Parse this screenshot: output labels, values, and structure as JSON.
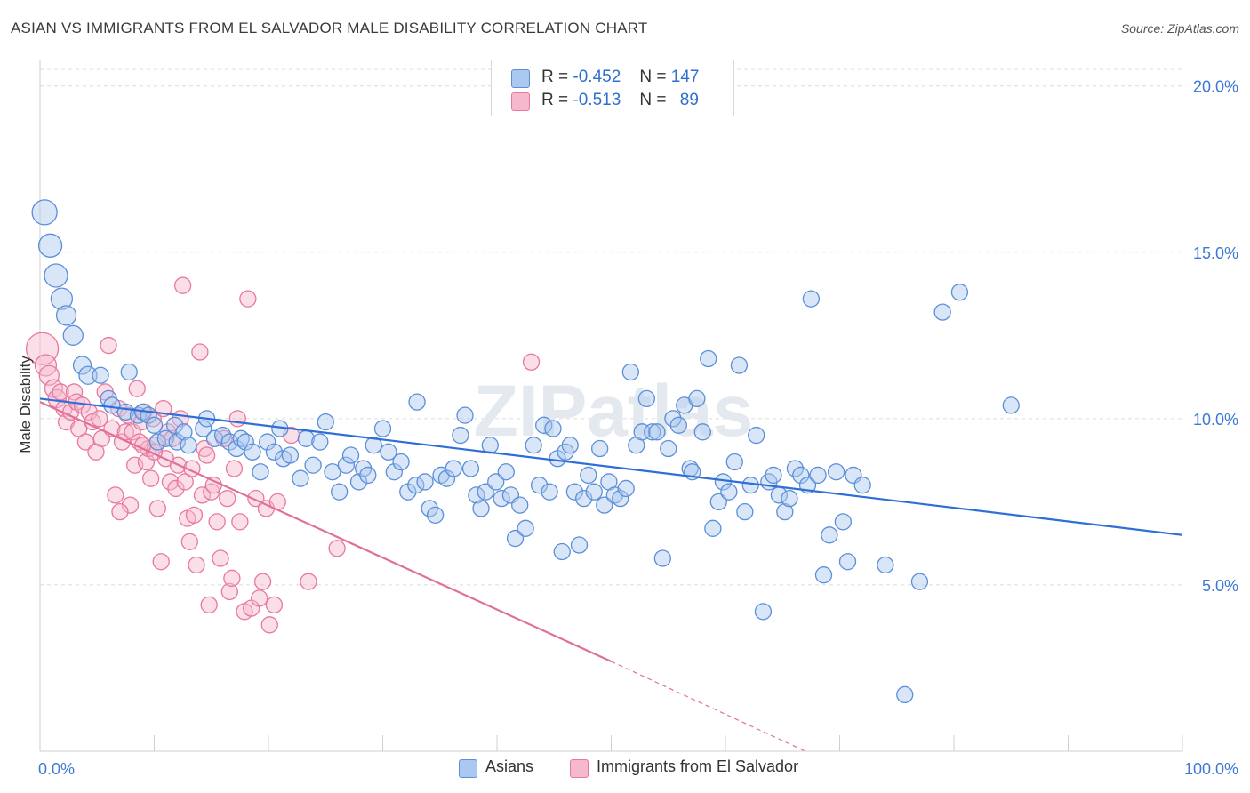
{
  "title": "ASIAN VS IMMIGRANTS FROM EL SALVADOR MALE DISABILITY CORRELATION CHART",
  "source": "Source: ZipAtlas.com",
  "watermark": "ZIPatlas",
  "legend_top": {
    "r_label": "R =",
    "n_label": "N =",
    "rows": [
      {
        "r": "-0.452",
        "n": "147"
      },
      {
        "r": "-0.513",
        "n": "89"
      }
    ]
  },
  "colors": {
    "asian_fill": "#aac8f0",
    "asian_stroke": "#5b8fd8",
    "asian_line": "#2d6fd6",
    "salv_fill": "#f6b8cc",
    "salv_stroke": "#e8789e",
    "salv_line": "#e0709a",
    "tick_label": "#3d78d4",
    "grid": "#dcdcdc"
  },
  "chart_data": {
    "type": "scatter",
    "title": "ASIAN VS IMMIGRANTS FROM EL SALVADOR MALE DISABILITY CORRELATION CHART",
    "xlabel": "",
    "ylabel": "Male Disability",
    "xlim": [
      0,
      100
    ],
    "ylim": [
      0,
      20.5
    ],
    "x_tick_labels": [
      "0.0%",
      "100.0%"
    ],
    "y_ticks": [
      5,
      10,
      15,
      20
    ],
    "y_tick_labels": [
      "5.0%",
      "10.0%",
      "15.0%",
      "20.0%"
    ],
    "grid": true,
    "legend_position": "bottom-center",
    "series": [
      {
        "name": "Asians",
        "r": -0.452,
        "n": 147,
        "trend": {
          "x0": 0,
          "y0": 10.6,
          "x1": 100,
          "y1": 6.5
        },
        "points": [
          [
            0.4,
            16.2,
            14
          ],
          [
            0.9,
            15.2,
            13
          ],
          [
            1.4,
            14.3,
            13
          ],
          [
            1.9,
            13.6,
            12
          ],
          [
            2.3,
            13.1,
            11
          ],
          [
            2.9,
            12.5,
            11
          ],
          [
            3.7,
            11.6,
            10
          ],
          [
            4.2,
            11.3,
            10
          ],
          [
            5.3,
            11.3,
            9
          ],
          [
            7.8,
            11.4,
            9
          ],
          [
            6.0,
            10.6,
            9
          ],
          [
            6.3,
            10.4,
            9
          ],
          [
            7.5,
            10.2,
            9
          ],
          [
            8.6,
            10.1,
            9
          ],
          [
            9.0,
            10.2,
            9
          ],
          [
            9.5,
            10.1,
            9
          ],
          [
            10.0,
            9.8,
            9
          ],
          [
            10.3,
            9.3,
            9
          ],
          [
            11.0,
            9.4,
            9
          ],
          [
            12.0,
            9.3,
            9
          ],
          [
            11.8,
            9.8,
            9
          ],
          [
            12.6,
            9.6,
            9
          ],
          [
            13.0,
            9.2,
            9
          ],
          [
            14.3,
            9.7,
            9
          ],
          [
            14.6,
            10.0,
            9
          ],
          [
            15.3,
            9.4,
            9
          ],
          [
            16.0,
            9.5,
            9
          ],
          [
            16.6,
            9.3,
            9
          ],
          [
            17.2,
            9.1,
            9
          ],
          [
            17.6,
            9.4,
            9
          ],
          [
            18.0,
            9.3,
            9
          ],
          [
            18.6,
            9.0,
            9
          ],
          [
            19.3,
            8.4,
            9
          ],
          [
            19.9,
            9.3,
            9
          ],
          [
            20.5,
            9.0,
            9
          ],
          [
            21.0,
            9.7,
            9
          ],
          [
            21.3,
            8.8,
            9
          ],
          [
            21.9,
            8.9,
            9
          ],
          [
            22.8,
            8.2,
            9
          ],
          [
            23.3,
            9.4,
            9
          ],
          [
            23.9,
            8.6,
            9
          ],
          [
            24.5,
            9.3,
            9
          ],
          [
            25.0,
            9.9,
            9
          ],
          [
            25.6,
            8.4,
            9
          ],
          [
            26.2,
            7.8,
            9
          ],
          [
            26.8,
            8.6,
            9
          ],
          [
            27.2,
            8.9,
            9
          ],
          [
            27.9,
            8.1,
            9
          ],
          [
            28.3,
            8.5,
            9
          ],
          [
            28.7,
            8.3,
            9
          ],
          [
            29.2,
            9.2,
            9
          ],
          [
            30.0,
            9.7,
            9
          ],
          [
            30.5,
            9.0,
            9
          ],
          [
            31.0,
            8.4,
            9
          ],
          [
            31.6,
            8.7,
            9
          ],
          [
            32.2,
            7.8,
            9
          ],
          [
            32.9,
            8.0,
            9
          ],
          [
            33.0,
            10.5,
            9
          ],
          [
            33.7,
            8.1,
            9
          ],
          [
            34.1,
            7.3,
            9
          ],
          [
            34.6,
            7.1,
            9
          ],
          [
            35.1,
            8.3,
            9
          ],
          [
            35.6,
            8.2,
            9
          ],
          [
            36.2,
            8.5,
            9
          ],
          [
            36.8,
            9.5,
            9
          ],
          [
            37.2,
            10.1,
            9
          ],
          [
            37.7,
            8.5,
            9
          ],
          [
            38.2,
            7.7,
            9
          ],
          [
            38.6,
            7.3,
            9
          ],
          [
            39.0,
            7.8,
            9
          ],
          [
            39.4,
            9.2,
            9
          ],
          [
            39.9,
            8.1,
            9
          ],
          [
            40.4,
            7.6,
            9
          ],
          [
            40.8,
            8.4,
            9
          ],
          [
            41.2,
            7.7,
            9
          ],
          [
            41.6,
            6.4,
            9
          ],
          [
            42.0,
            7.4,
            9
          ],
          [
            42.5,
            6.7,
            9
          ],
          [
            43.2,
            9.2,
            9
          ],
          [
            43.7,
            8.0,
            9
          ],
          [
            44.1,
            9.8,
            9
          ],
          [
            44.6,
            7.8,
            9
          ],
          [
            44.9,
            9.7,
            9
          ],
          [
            45.3,
            8.8,
            9
          ],
          [
            45.7,
            6.0,
            9
          ],
          [
            46.0,
            9.0,
            9
          ],
          [
            46.4,
            9.2,
            9
          ],
          [
            46.8,
            7.8,
            9
          ],
          [
            47.2,
            6.2,
            9
          ],
          [
            47.6,
            7.6,
            9
          ],
          [
            48.0,
            8.3,
            9
          ],
          [
            48.5,
            7.8,
            9
          ],
          [
            49.0,
            9.1,
            9
          ],
          [
            49.4,
            7.4,
            9
          ],
          [
            49.8,
            8.1,
            9
          ],
          [
            50.3,
            7.7,
            9
          ],
          [
            50.8,
            7.6,
            9
          ],
          [
            51.3,
            7.9,
            9
          ],
          [
            51.7,
            11.4,
            9
          ],
          [
            52.2,
            9.2,
            9
          ],
          [
            52.7,
            9.6,
            9
          ],
          [
            53.1,
            10.6,
            9
          ],
          [
            53.6,
            9.6,
            9
          ],
          [
            54.0,
            9.6,
            9
          ],
          [
            54.5,
            5.8,
            9
          ],
          [
            55.0,
            9.1,
            9
          ],
          [
            55.4,
            10.0,
            9
          ],
          [
            55.9,
            9.8,
            9
          ],
          [
            56.4,
            10.4,
            9
          ],
          [
            56.9,
            8.5,
            9
          ],
          [
            57.1,
            8.4,
            9
          ],
          [
            57.5,
            10.6,
            9
          ],
          [
            58.0,
            9.6,
            9
          ],
          [
            58.5,
            11.8,
            9
          ],
          [
            58.9,
            6.7,
            9
          ],
          [
            59.4,
            7.5,
            9
          ],
          [
            59.8,
            8.1,
            9
          ],
          [
            60.3,
            7.8,
            9
          ],
          [
            60.8,
            8.7,
            9
          ],
          [
            61.2,
            11.6,
            9
          ],
          [
            61.7,
            7.2,
            9
          ],
          [
            62.2,
            8.0,
            9
          ],
          [
            62.7,
            9.5,
            9
          ],
          [
            63.3,
            4.2,
            9
          ],
          [
            63.8,
            8.1,
            9
          ],
          [
            64.2,
            8.3,
            9
          ],
          [
            64.7,
            7.7,
            9
          ],
          [
            65.2,
            7.2,
            9
          ],
          [
            65.6,
            7.6,
            9
          ],
          [
            66.1,
            8.5,
            9
          ],
          [
            66.6,
            8.3,
            9
          ],
          [
            67.2,
            8.0,
            9
          ],
          [
            67.5,
            13.6,
            9
          ],
          [
            68.1,
            8.3,
            9
          ],
          [
            68.6,
            5.3,
            9
          ],
          [
            69.1,
            6.5,
            9
          ],
          [
            69.7,
            8.4,
            9
          ],
          [
            70.3,
            6.9,
            9
          ],
          [
            70.7,
            5.7,
            9
          ],
          [
            71.2,
            8.3,
            9
          ],
          [
            72.0,
            8.0,
            9
          ],
          [
            74.0,
            5.6,
            9
          ],
          [
            75.7,
            1.7,
            9
          ],
          [
            77.0,
            5.1,
            9
          ],
          [
            79.0,
            13.2,
            9
          ],
          [
            80.5,
            13.8,
            9
          ],
          [
            85.0,
            10.4,
            9
          ]
        ]
      },
      {
        "name": "Immigrants from El Salvador",
        "r": -0.513,
        "n": 89,
        "trend": {
          "x0": 0,
          "y0": 10.5,
          "x1": 50,
          "y1": 2.7
        },
        "trend_dashed": {
          "x0": 50,
          "y0": 2.7,
          "x1": 67,
          "y1": 0.0
        },
        "points": [
          [
            0.2,
            12.1,
            18
          ],
          [
            0.5,
            11.6,
            12
          ],
          [
            0.8,
            11.3,
            11
          ],
          [
            1.2,
            10.9,
            10
          ],
          [
            1.5,
            10.6,
            10
          ],
          [
            1.8,
            10.8,
            9
          ],
          [
            2.1,
            10.3,
            9
          ],
          [
            2.3,
            9.9,
            9
          ],
          [
            2.7,
            10.2,
            9
          ],
          [
            3.0,
            10.8,
            9
          ],
          [
            3.2,
            10.5,
            9
          ],
          [
            3.4,
            9.7,
            9
          ],
          [
            3.7,
            10.4,
            9
          ],
          [
            4.0,
            9.3,
            9
          ],
          [
            4.3,
            10.2,
            9
          ],
          [
            4.6,
            9.9,
            9
          ],
          [
            4.9,
            9.0,
            9
          ],
          [
            5.2,
            10.0,
            9
          ],
          [
            5.4,
            9.4,
            9
          ],
          [
            5.7,
            10.8,
            9
          ],
          [
            6.0,
            12.2,
            9
          ],
          [
            6.3,
            9.7,
            9
          ],
          [
            6.6,
            7.7,
            9
          ],
          [
            6.9,
            10.3,
            9
          ],
          [
            7.2,
            9.3,
            9
          ],
          [
            7.5,
            9.6,
            9
          ],
          [
            7.7,
            10.1,
            9
          ],
          [
            7.9,
            7.4,
            9
          ],
          [
            8.1,
            9.6,
            9
          ],
          [
            8.3,
            8.6,
            9
          ],
          [
            8.5,
            10.9,
            9
          ],
          [
            8.7,
            9.3,
            9
          ],
          [
            8.9,
            9.9,
            9
          ],
          [
            9.1,
            10.2,
            9
          ],
          [
            9.3,
            8.7,
            9
          ],
          [
            9.5,
            9.1,
            9
          ],
          [
            9.7,
            8.2,
            9
          ],
          [
            9.9,
            10.0,
            9
          ],
          [
            10.1,
            9.2,
            9
          ],
          [
            10.3,
            7.3,
            9
          ],
          [
            10.6,
            5.7,
            9
          ],
          [
            10.8,
            10.3,
            9
          ],
          [
            11.0,
            8.8,
            9
          ],
          [
            11.2,
            9.6,
            9
          ],
          [
            11.4,
            8.1,
            9
          ],
          [
            11.6,
            9.4,
            9
          ],
          [
            11.9,
            7.9,
            9
          ],
          [
            12.1,
            8.6,
            9
          ],
          [
            12.3,
            10.0,
            9
          ],
          [
            12.5,
            14.0,
            9
          ],
          [
            12.7,
            8.1,
            9
          ],
          [
            12.9,
            7.0,
            9
          ],
          [
            13.1,
            6.3,
            9
          ],
          [
            13.3,
            8.5,
            9
          ],
          [
            13.5,
            7.1,
            9
          ],
          [
            13.7,
            5.6,
            9
          ],
          [
            14.0,
            12.0,
            9
          ],
          [
            14.2,
            7.7,
            9
          ],
          [
            14.4,
            9.1,
            9
          ],
          [
            14.6,
            8.9,
            9
          ],
          [
            14.8,
            4.4,
            9
          ],
          [
            15.0,
            7.8,
            9
          ],
          [
            15.2,
            8.0,
            9
          ],
          [
            15.5,
            6.9,
            9
          ],
          [
            15.8,
            5.8,
            9
          ],
          [
            16.1,
            9.4,
            9
          ],
          [
            16.4,
            7.6,
            9
          ],
          [
            16.6,
            4.8,
            9
          ],
          [
            16.8,
            5.2,
            9
          ],
          [
            17.0,
            8.5,
            9
          ],
          [
            17.3,
            10.0,
            9
          ],
          [
            17.5,
            6.9,
            9
          ],
          [
            17.9,
            4.2,
            9
          ],
          [
            18.2,
            13.6,
            9
          ],
          [
            18.5,
            4.3,
            9
          ],
          [
            18.9,
            7.6,
            9
          ],
          [
            19.2,
            4.6,
            9
          ],
          [
            19.5,
            5.1,
            9
          ],
          [
            19.8,
            7.3,
            9
          ],
          [
            20.1,
            3.8,
            9
          ],
          [
            20.5,
            4.4,
            9
          ],
          [
            20.8,
            7.5,
            9
          ],
          [
            23.5,
            5.1,
            9
          ],
          [
            26.0,
            6.1,
            9
          ],
          [
            43.0,
            11.7,
            9
          ],
          [
            22.0,
            9.5,
            9
          ],
          [
            10.0,
            9.0,
            9
          ],
          [
            9.0,
            9.2,
            9
          ],
          [
            7.0,
            7.2,
            9
          ]
        ]
      }
    ]
  },
  "legend_bottom": [
    {
      "label": "Asians"
    },
    {
      "label": "Immigrants from El Salvador"
    }
  ]
}
